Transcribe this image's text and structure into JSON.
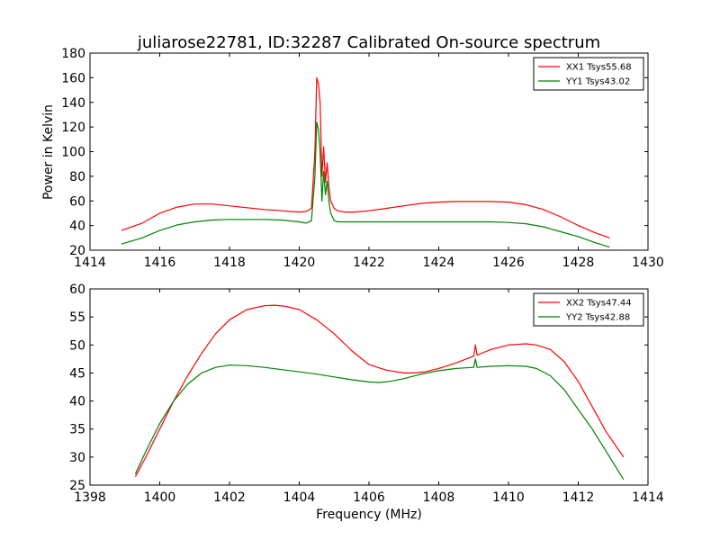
{
  "chart_data": [
    {
      "type": "line",
      "title": "juliarose22781, ID:32287 Calibrated On-source spectrum",
      "xlabel": "",
      "ylabel": "Power in Kelvin",
      "xlim": [
        1414,
        1430
      ],
      "ylim": [
        20,
        180
      ],
      "xticks": [
        "1414",
        "1416",
        "1418",
        "1420",
        "1422",
        "1424",
        "1426",
        "1428",
        "1430"
      ],
      "yticks": [
        "20",
        "40",
        "60",
        "80",
        "100",
        "120",
        "140",
        "160",
        "180"
      ],
      "grid": false,
      "legend_position": "top-right",
      "series": [
        {
          "name": "XX1 Tsys55.68",
          "color": "#ff0000",
          "x": [
            1414.9,
            1415.5,
            1416.0,
            1416.5,
            1417.0,
            1417.5,
            1418.0,
            1418.5,
            1419.0,
            1419.5,
            1420.0,
            1420.2,
            1420.35,
            1420.45,
            1420.5,
            1420.55,
            1420.6,
            1420.65,
            1420.7,
            1420.75,
            1420.8,
            1420.85,
            1420.9,
            1421.0,
            1421.1,
            1421.3,
            1421.6,
            1422.0,
            1422.5,
            1423.0,
            1423.5,
            1424.0,
            1424.5,
            1425.0,
            1425.5,
            1426.0,
            1426.5,
            1427.0,
            1427.5,
            1428.0,
            1428.5,
            1428.9
          ],
          "y": [
            36,
            42,
            50,
            55,
            57.5,
            57.5,
            56,
            54.5,
            53,
            52,
            51,
            51.5,
            54,
            100,
            160,
            155,
            140,
            80,
            104,
            75,
            91,
            72,
            60,
            54,
            52,
            51,
            51,
            52,
            54,
            56,
            58,
            59,
            59.5,
            59.5,
            59.5,
            59,
            57,
            53,
            47,
            40,
            34,
            30
          ]
        },
        {
          "name": "YY1 Tsys43.02",
          "color": "#008000",
          "x": [
            1414.9,
            1415.5,
            1416.0,
            1416.5,
            1417.0,
            1417.5,
            1418.0,
            1418.5,
            1419.0,
            1419.5,
            1420.0,
            1420.2,
            1420.35,
            1420.45,
            1420.5,
            1420.55,
            1420.6,
            1420.65,
            1420.7,
            1420.75,
            1420.8,
            1420.85,
            1420.9,
            1421.0,
            1421.1,
            1421.3,
            1421.6,
            1422.0,
            1422.5,
            1423.0,
            1423.5,
            1424.0,
            1424.5,
            1425.0,
            1425.5,
            1426.0,
            1426.5,
            1427.0,
            1427.5,
            1428.0,
            1428.5,
            1428.9
          ],
          "y": [
            25,
            30,
            36,
            40.5,
            43,
            44.5,
            45,
            45,
            45,
            44.5,
            43,
            42,
            44,
            80,
            124,
            118,
            100,
            60,
            84,
            65,
            76,
            60,
            50,
            44,
            43,
            43,
            43,
            43,
            43,
            43,
            43,
            43,
            43,
            43,
            43,
            42.5,
            41.5,
            39,
            35,
            31,
            26,
            22.5
          ]
        }
      ]
    },
    {
      "type": "line",
      "title": "",
      "xlabel": "Frequency (MHz)",
      "ylabel": "",
      "xlim": [
        1398,
        1414
      ],
      "ylim": [
        25,
        60
      ],
      "xticks": [
        "1398",
        "1400",
        "1402",
        "1404",
        "1406",
        "1408",
        "1410",
        "1412",
        "1414"
      ],
      "yticks": [
        "25",
        "30",
        "35",
        "40",
        "45",
        "50",
        "55",
        "60"
      ],
      "grid": false,
      "legend_position": "top-right",
      "series": [
        {
          "name": "XX2 Tsys47.44",
          "color": "#ff0000",
          "x": [
            1399.3,
            1399.6,
            1400.0,
            1400.4,
            1400.8,
            1401.2,
            1401.6,
            1402.0,
            1402.5,
            1403.0,
            1403.3,
            1403.6,
            1404.0,
            1404.5,
            1405.0,
            1405.5,
            1406.0,
            1406.5,
            1407.0,
            1407.3,
            1407.6,
            1408.0,
            1408.5,
            1409.0,
            1409.05,
            1409.1,
            1409.5,
            1410.0,
            1410.5,
            1410.8,
            1411.2,
            1411.6,
            1412.0,
            1412.4,
            1412.8,
            1413.3
          ],
          "y": [
            26.5,
            30,
            35,
            40,
            44.5,
            48.5,
            52,
            54.5,
            56.3,
            57,
            57.1,
            56.9,
            56.3,
            54.5,
            52,
            49,
            46.5,
            45.5,
            45,
            45,
            45.2,
            45.8,
            46.8,
            48,
            50,
            48.2,
            49.2,
            50,
            50.2,
            50,
            49.2,
            47,
            43.5,
            39,
            34.5,
            30
          ]
        },
        {
          "name": "YY2 Tsys42.88",
          "color": "#008000",
          "x": [
            1399.3,
            1399.6,
            1400.0,
            1400.4,
            1400.8,
            1401.2,
            1401.6,
            1402.0,
            1402.5,
            1403.0,
            1403.5,
            1404.0,
            1404.5,
            1405.0,
            1405.5,
            1406.0,
            1406.3,
            1406.6,
            1407.0,
            1407.5,
            1408.0,
            1408.5,
            1409.0,
            1409.05,
            1409.1,
            1409.5,
            1410.0,
            1410.5,
            1410.8,
            1411.2,
            1411.6,
            1412.0,
            1412.4,
            1412.8,
            1413.3
          ],
          "y": [
            27,
            31,
            36,
            40,
            43,
            45,
            46,
            46.4,
            46.3,
            46,
            45.6,
            45.2,
            44.8,
            44.3,
            43.8,
            43.4,
            43.3,
            43.5,
            44,
            44.8,
            45.4,
            45.8,
            46,
            47.5,
            46,
            46.2,
            46.3,
            46.2,
            45.8,
            44.5,
            42,
            38.5,
            35,
            31,
            26
          ]
        }
      ]
    }
  ]
}
